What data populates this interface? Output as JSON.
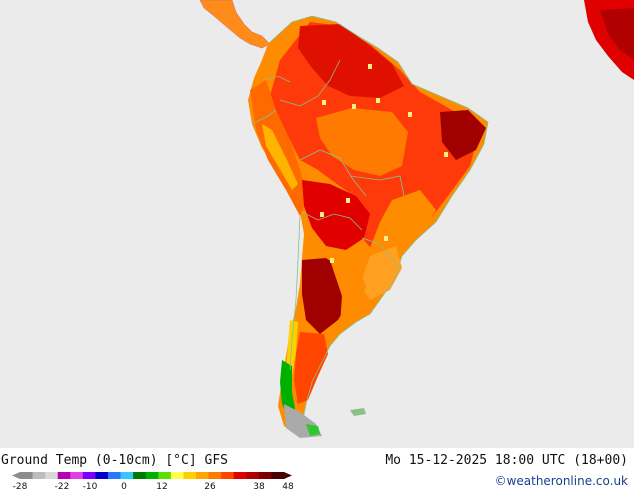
{
  "title": "Ground Temp (0-10cm) [°C] GFS",
  "timestamp": "Mo 15-12-2025 18:00 UTC (18+00)",
  "credit": "©weatheronline.co.uk",
  "colors": {
    "ocean": "#ebebeb",
    "land_other": "#e0e0e0",
    "border": "#8ac08a"
  },
  "legend": {
    "ticks": [
      "-28",
      "-22",
      "-10",
      "0",
      "12",
      "26",
      "38",
      "48"
    ],
    "colors": [
      "#8c8c8c",
      "#bdbdbd",
      "#d9d9d9",
      "#b000b0",
      "#e040e0",
      "#7a00ff",
      "#0000c8",
      "#2a78ff",
      "#30c8ff",
      "#007a00",
      "#00b000",
      "#5ae000",
      "#ffff50",
      "#ffd000",
      "#ffa500",
      "#ff7a00",
      "#ff4500",
      "#e00000",
      "#b00000",
      "#800000",
      "#4a0000"
    ]
  }
}
